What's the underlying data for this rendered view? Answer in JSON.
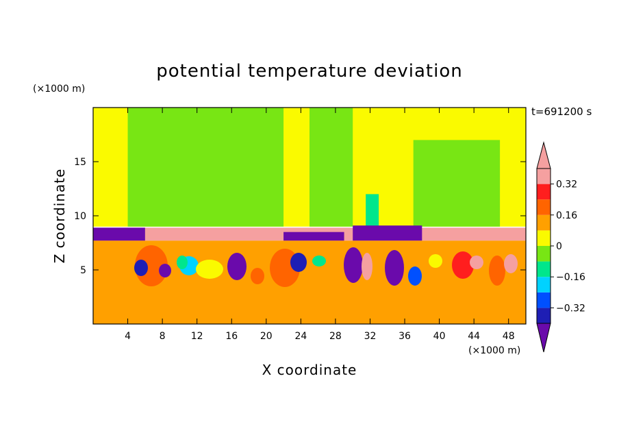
{
  "chart_data": {
    "type": "heatmap",
    "title": "potential temperature deviation",
    "xlabel": "X coordinate",
    "ylabel": "Z coordinate",
    "x_unit_label": "(×1000 m)",
    "y_unit_label": "(×1000 m)",
    "time_label": "t=691200 s",
    "xlim": [
      0,
      50
    ],
    "ylim": [
      0,
      20
    ],
    "x_ticks": [
      4,
      8,
      12,
      16,
      20,
      24,
      28,
      32,
      36,
      40,
      44,
      48
    ],
    "x_tick_labels": [
      "4",
      "8",
      "12",
      "16",
      "20",
      "24",
      "28",
      "32",
      "36",
      "40",
      "44",
      "48"
    ],
    "y_ticks": [
      5,
      10,
      15
    ],
    "y_tick_labels": [
      "5",
      "10",
      "15"
    ],
    "colorbar": {
      "levels": [
        -0.4,
        -0.32,
        -0.24,
        -0.16,
        -0.08,
        0,
        0.08,
        0.16,
        0.24,
        0.32,
        0.4
      ],
      "labeled_levels": [
        0.32,
        0.16,
        0,
        -0.16,
        -0.32
      ],
      "labels": [
        "0.32",
        "0.16",
        "0",
        "−0.16",
        "−0.32"
      ],
      "colors": [
        "#6a0aab",
        "#1e1eb4",
        "#0050ff",
        "#00d2ff",
        "#00e68c",
        "#78e614",
        "#fafa00",
        "#ffa000",
        "#ff6400",
        "#ff1e1e",
        "#f5a0a0"
      ],
      "extend": "both"
    },
    "regions": [
      {
        "name": "upper-layer-base",
        "x": [
          0,
          50
        ],
        "z": [
          9,
          20
        ],
        "value": 0.04
      },
      {
        "name": "upper-left-plume",
        "x": [
          4,
          22
        ],
        "z": [
          9,
          20
        ],
        "value": -0.02
      },
      {
        "name": "upper-right-plume",
        "x": [
          37,
          47
        ],
        "z": [
          9,
          17
        ],
        "value": -0.02
      },
      {
        "name": "upper-mid-plume",
        "x": [
          25,
          30
        ],
        "z": [
          9,
          20
        ],
        "value": -0.02
      },
      {
        "name": "cyan-anomaly",
        "x": [
          31.5,
          33
        ],
        "z": [
          9,
          12
        ],
        "value": -0.12
      },
      {
        "name": "warm-lid",
        "x": [
          0,
          50
        ],
        "z": [
          7.7,
          8.9
        ],
        "value": 0.42
      },
      {
        "name": "cold-lid-left",
        "x": [
          0,
          6
        ],
        "z": [
          7.7,
          8.9
        ],
        "value": -0.42
      },
      {
        "name": "cold-lid-mid",
        "x": [
          22,
          29
        ],
        "z": [
          7.7,
          8.5
        ],
        "value": -0.42
      },
      {
        "name": "cold-lid-right",
        "x": [
          30,
          38
        ],
        "z": [
          7.7,
          9.1
        ],
        "value": -0.42
      },
      {
        "name": "boundary-layer",
        "x": [
          0,
          50
        ],
        "z": [
          0,
          7.7
        ],
        "value": 0.1
      }
    ]
  }
}
